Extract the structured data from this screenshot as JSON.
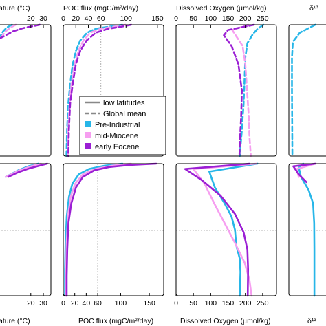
{
  "colors": {
    "Pre-Industrial": "#27b6e8",
    "mid-Miocene": "#f69ef0",
    "early Eocene": "#9b1fd4",
    "legend_line": "#888888"
  },
  "axis_titles": {
    "temp": "ature (°C)",
    "poc": "POC flux (mgC/m²/day)",
    "oxygen": "Dissolved Oxygen (µmol/kg)",
    "d13c": "δ¹³"
  },
  "chart_data": {
    "type": "line",
    "legend": {
      "placement": "middle of POC flux panels",
      "entries": [
        {
          "label": "low latitudes",
          "style": "solid"
        },
        {
          "label": "Global mean",
          "style": "dashed"
        },
        {
          "label": "Pre-Industrial",
          "color_key": "Pre-Industrial"
        },
        {
          "label": "mid-Miocene",
          "color_key": "mid-Miocene"
        },
        {
          "label": "early Eocene",
          "color_key": "early Eocene"
        }
      ]
    },
    "panels": [
      {
        "id": "temp-top",
        "quantity": "temp",
        "linestyle": "dashed",
        "xlim": [
          -10,
          36
        ],
        "ticks": [
          20,
          30
        ],
        "series": [
          {
            "name": "Pre-Industrial",
            "points": [
              [
                5,
                0
              ],
              [
                1,
                0.02
              ],
              [
                -2,
                0.05
              ],
              [
                -5,
                0.1
              ]
            ]
          },
          {
            "name": "mid-Miocene",
            "points": [
              [
                8,
                0
              ],
              [
                4,
                0.02
              ],
              [
                0,
                0.05
              ],
              [
                -4,
                0.1
              ]
            ]
          },
          {
            "name": "early Eocene",
            "points": [
              [
                27,
                0
              ],
              [
                22,
                0.01
              ],
              [
                14,
                0.025
              ],
              [
                6,
                0.05
              ],
              [
                -4,
                0.1
              ]
            ]
          }
        ]
      },
      {
        "id": "poc-top",
        "quantity": "poc",
        "linestyle": "dashed",
        "xlim": [
          0,
          160
        ],
        "ticks": [
          0,
          20,
          40,
          60,
          100,
          150
        ],
        "ref_x": 60,
        "series": [
          {
            "name": "Pre-Industrial",
            "points": [
              [
                94,
                0
              ],
              [
                72,
                0.015
              ],
              [
                52,
                0.03
              ],
              [
                38,
                0.06
              ],
              [
                27,
                0.12
              ],
              [
                20,
                0.2
              ],
              [
                15,
                0.3
              ],
              [
                11,
                0.45
              ],
              [
                8,
                0.6
              ],
              [
                6,
                0.8
              ],
              [
                5,
                1
              ]
            ]
          },
          {
            "name": "mid-Miocene",
            "points": [
              [
                99,
                0
              ],
              [
                80,
                0.015
              ],
              [
                60,
                0.03
              ],
              [
                43,
                0.06
              ],
              [
                32,
                0.12
              ],
              [
                24,
                0.2
              ],
              [
                18,
                0.3
              ],
              [
                13,
                0.45
              ],
              [
                10,
                0.6
              ],
              [
                8,
                0.8
              ],
              [
                7,
                1
              ]
            ]
          },
          {
            "name": "early Eocene",
            "points": [
              [
                108,
                0
              ],
              [
                92,
                0.015
              ],
              [
                72,
                0.03
              ],
              [
                52,
                0.06
              ],
              [
                37,
                0.12
              ],
              [
                27,
                0.2
              ],
              [
                20,
                0.3
              ],
              [
                15,
                0.45
              ],
              [
                11,
                0.6
              ],
              [
                9,
                0.8
              ],
              [
                8,
                1
              ]
            ]
          }
        ]
      },
      {
        "id": "oxygen-top",
        "quantity": "oxygen",
        "linestyle": "dashed",
        "xlim": [
          0,
          290
        ],
        "ticks": [
          0,
          50,
          100,
          150,
          200,
          250
        ],
        "ref_x": 150,
        "series": [
          {
            "name": "Pre-Industrial",
            "points": [
              [
                252,
                0
              ],
              [
                236,
                0.03
              ],
              [
                222,
                0.07
              ],
              [
                206,
                0.14
              ],
              [
                200,
                0.25
              ],
              [
                198,
                0.4
              ],
              [
                195,
                0.6
              ],
              [
                190,
                0.8
              ],
              [
                184,
                1
              ]
            ]
          },
          {
            "name": "mid-Miocene",
            "points": [
              [
                208,
                0
              ],
              [
                162,
                0.04
              ],
              [
                172,
                0.08
              ],
              [
                192,
                0.16
              ],
              [
                200,
                0.3
              ],
              [
                205,
                0.5
              ],
              [
                210,
                0.7
              ],
              [
                212,
                0.85
              ],
              [
                216,
                1
              ]
            ]
          },
          {
            "name": "early Eocene",
            "points": [
              [
                225,
                0
              ],
              [
                150,
                0.04
              ],
              [
                138,
                0.08
              ],
              [
                160,
                0.16
              ],
              [
                180,
                0.3
              ],
              [
                190,
                0.5
              ],
              [
                188,
                0.7
              ],
              [
                185,
                0.85
              ],
              [
                183,
                1
              ]
            ]
          }
        ]
      },
      {
        "id": "d13c-top",
        "quantity": "d13c",
        "linestyle": "dashed",
        "xlim": [
          -1,
          1
        ],
        "ticks": [],
        "ref_x": -0.45,
        "series": [
          {
            "name": "Pre-Industrial",
            "points": [
              [
                0.2,
                0
              ],
              [
                -0.5,
                0.06
              ],
              [
                -0.82,
                0.13
              ],
              [
                -0.86,
                0.25
              ],
              [
                -0.86,
                0.5
              ],
              [
                -0.85,
                0.75
              ],
              [
                -0.84,
                1
              ]
            ]
          }
        ]
      },
      {
        "id": "temp-bottom",
        "quantity": "temp",
        "linestyle": "solid",
        "xlim": [
          -10,
          36
        ],
        "ticks": [
          20,
          30
        ],
        "series": [
          {
            "name": "Pre-Industrial",
            "points": [
              [
                26,
                0
              ],
              [
                18,
                0.02
              ],
              [
                10,
                0.05
              ],
              [
                0,
                0.1
              ]
            ]
          },
          {
            "name": "mid-Miocene",
            "points": [
              [
                28,
                0
              ],
              [
                20,
                0.02
              ],
              [
                11,
                0.05
              ],
              [
                0,
                0.1
              ]
            ]
          },
          {
            "name": "early Eocene",
            "points": [
              [
                33,
                0
              ],
              [
                27,
                0.015
              ],
              [
                19,
                0.035
              ],
              [
                10,
                0.065
              ],
              [
                2,
                0.1
              ]
            ]
          }
        ]
      },
      {
        "id": "poc-bottom",
        "quantity": "poc",
        "linestyle": "solid",
        "xlim": [
          0,
          175
        ],
        "ticks": [
          0,
          20,
          40,
          60,
          100,
          150
        ],
        "ref_x": 60,
        "series": [
          {
            "name": "Pre-Industrial",
            "points": [
              [
                103,
                0
              ],
              [
                72,
                0.015
              ],
              [
                45,
                0.04
              ],
              [
                27,
                0.08
              ],
              [
                16,
                0.15
              ],
              [
                10,
                0.25
              ],
              [
                6,
                0.4
              ],
              [
                4,
                0.6
              ],
              [
                3,
                0.8
              ],
              [
                3,
                1
              ]
            ]
          },
          {
            "name": "mid-Miocene",
            "points": [
              [
                118,
                0
              ],
              [
                85,
                0.015
              ],
              [
                56,
                0.04
              ],
              [
                34,
                0.08
              ],
              [
                21,
                0.15
              ],
              [
                13,
                0.25
              ],
              [
                8,
                0.4
              ],
              [
                6,
                0.6
              ],
              [
                5,
                0.8
              ],
              [
                5,
                1
              ]
            ]
          },
          {
            "name": "early Eocene",
            "points": [
              [
                162,
                0
              ],
              [
                115,
                0.01
              ],
              [
                80,
                0.025
              ],
              [
                54,
                0.05
              ],
              [
                34,
                0.1
              ],
              [
                22,
                0.18
              ],
              [
                14,
                0.3
              ],
              [
                9,
                0.45
              ],
              [
                7,
                0.65
              ],
              [
                6,
                0.85
              ],
              [
                6,
                1
              ]
            ]
          }
        ]
      },
      {
        "id": "oxygen-bottom",
        "quantity": "oxygen",
        "linestyle": "solid",
        "xlim": [
          0,
          290
        ],
        "ticks": [
          0,
          50,
          100,
          150,
          200,
          250
        ],
        "ref_x": 150,
        "series": [
          {
            "name": "Pre-Industrial",
            "points": [
              [
                235,
                0
              ],
              [
                96,
                0.06
              ],
              [
                112,
                0.18
              ],
              [
                140,
                0.3
              ],
              [
                160,
                0.4
              ],
              [
                170,
                0.5
              ],
              [
                174,
                0.62
              ],
              [
                184,
                0.72
              ],
              [
                186,
                0.82
              ],
              [
                184,
                1
              ]
            ]
          },
          {
            "name": "mid-Miocene",
            "points": [
              [
                232,
                0
              ],
              [
                50,
                0.04
              ],
              [
                82,
                0.15
              ],
              [
                110,
                0.3
              ],
              [
                140,
                0.45
              ],
              [
                170,
                0.6
              ],
              [
                198,
                0.75
              ],
              [
                212,
                0.88
              ],
              [
                218,
                1
              ]
            ]
          },
          {
            "name": "early Eocene",
            "points": [
              [
                212,
                0
              ],
              [
                26,
                0.04
              ],
              [
                72,
                0.12
              ],
              [
                128,
                0.24
              ],
              [
                170,
                0.38
              ],
              [
                195,
                0.52
              ],
              [
                206,
                0.65
              ],
              [
                208,
                0.8
              ],
              [
                207,
                1
              ]
            ]
          }
        ]
      },
      {
        "id": "d13c-bottom",
        "quantity": "d13c",
        "linestyle": "solid",
        "xlim": [
          -1,
          1
        ],
        "ticks": [],
        "ref_x": -0.45,
        "series": [
          {
            "name": "Pre-Industrial",
            "points": [
              [
                -0.35,
                0
              ],
              [
                -0.55,
                0.03
              ],
              [
                -0.45,
                0.1
              ],
              [
                -0.1,
                0.2
              ],
              [
                0.1,
                0.3
              ],
              [
                0.15,
                0.45
              ],
              [
                0.16,
                0.65
              ],
              [
                0.16,
                1
              ]
            ]
          },
          {
            "name": "mid-Miocene",
            "points": [
              [
                0.2,
                0
              ],
              [
                -0.65,
                0.04
              ],
              [
                -0.55,
                0.1
              ]
            ]
          },
          {
            "name": "early Eocene",
            "points": [
              [
                0.2,
                0
              ],
              [
                -0.8,
                0.02
              ],
              [
                -0.55,
                0.08
              ],
              [
                -0.2,
                0.14
              ]
            ]
          }
        ]
      }
    ]
  }
}
